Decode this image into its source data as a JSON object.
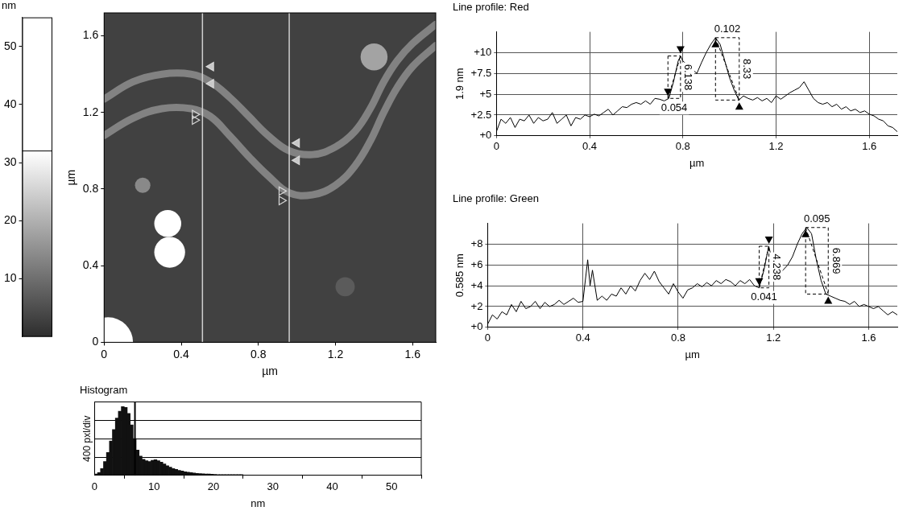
{
  "chart_data": [
    {
      "type": "colorbar",
      "title": "nm",
      "ylim": [
        0,
        55
      ],
      "yticks": [
        10,
        20,
        30,
        40,
        50
      ],
      "saturation": 32
    },
    {
      "type": "image",
      "x_label": "µm",
      "y_label": "µm",
      "xlim": [
        0,
        1.72
      ],
      "ylim": [
        0,
        1.72
      ],
      "xticks": [
        0,
        0.4,
        0.8,
        1.2,
        1.6
      ],
      "yticks": [
        0,
        0.4,
        0.8,
        1.2,
        1.6
      ],
      "background_height": 3,
      "strands": [
        {
          "height": 13,
          "points": [
            [
              0,
              1.27
            ],
            [
              0.15,
              1.36
            ],
            [
              0.3,
              1.4
            ],
            [
              0.45,
              1.4
            ],
            [
              0.55,
              1.36
            ],
            [
              0.65,
              1.28
            ],
            [
              0.75,
              1.18
            ],
            [
              0.85,
              1.08
            ],
            [
              0.96,
              1.0
            ],
            [
              1.08,
              0.98
            ],
            [
              1.2,
              1.02
            ],
            [
              1.3,
              1.1
            ],
            [
              1.38,
              1.22
            ],
            [
              1.45,
              1.36
            ],
            [
              1.52,
              1.47
            ],
            [
              1.6,
              1.56
            ],
            [
              1.72,
              1.66
            ]
          ]
        },
        {
          "height": 13,
          "points": [
            [
              0,
              1.08
            ],
            [
              0.15,
              1.17
            ],
            [
              0.3,
              1.22
            ],
            [
              0.45,
              1.22
            ],
            [
              0.55,
              1.18
            ],
            [
              0.65,
              1.08
            ],
            [
              0.75,
              0.97
            ],
            [
              0.85,
              0.87
            ],
            [
              0.96,
              0.78
            ],
            [
              1.08,
              0.77
            ],
            [
              1.2,
              0.82
            ],
            [
              1.3,
              0.92
            ],
            [
              1.38,
              1.05
            ],
            [
              1.45,
              1.2
            ],
            [
              1.52,
              1.33
            ],
            [
              1.6,
              1.44
            ],
            [
              1.72,
              1.55
            ]
          ]
        }
      ],
      "blobs": [
        {
          "x": 0.33,
          "y": 0.62,
          "radius": 0.07,
          "height": 35
        },
        {
          "x": 0.34,
          "y": 0.47,
          "radius": 0.08,
          "height": 35
        },
        {
          "x": 0.2,
          "y": 0.82,
          "radius": 0.04,
          "height": 14
        },
        {
          "x": 1.4,
          "y": 1.49,
          "radius": 0.07,
          "height": 18
        },
        {
          "x": 0.02,
          "y": 0.0,
          "radius": 0.13,
          "height": 40
        },
        {
          "x": 1.25,
          "y": 0.29,
          "radius": 0.05,
          "height": 7
        }
      ],
      "profile_lines": [
        0.51,
        0.96
      ],
      "cursors": [
        {
          "x": 0.555,
          "y": 1.44,
          "marker": "filled_triangle_left"
        },
        {
          "x": 0.555,
          "y": 1.35,
          "marker": "filled_triangle_left"
        },
        {
          "x": 0.47,
          "y": 1.19,
          "marker": "open_triangle_right"
        },
        {
          "x": 0.47,
          "y": 1.16,
          "marker": "open_triangle_right"
        },
        {
          "x": 1.0,
          "y": 1.04,
          "marker": "filled_triangle_left"
        },
        {
          "x": 1.0,
          "y": 0.95,
          "marker": "filled_triangle_left"
        },
        {
          "x": 0.92,
          "y": 0.79,
          "marker": "open_triangle_right"
        },
        {
          "x": 0.92,
          "y": 0.74,
          "marker": "open_triangle_right"
        }
      ]
    },
    {
      "type": "histogram",
      "title": "Histogram",
      "x_label": "nm",
      "y_label": "400 pxl/div",
      "xlim": [
        0,
        55
      ],
      "xticks": [
        0,
        10,
        20,
        30,
        40,
        50
      ],
      "ylim": [
        0,
        1600
      ],
      "yticks": [
        0,
        400,
        800,
        1200,
        1600
      ],
      "tick_labels": "x",
      "grid": true,
      "color": "#111111",
      "cursor": 6.8,
      "bins": [
        0,
        0.5,
        1,
        1.5,
        2,
        2.5,
        3,
        3.5,
        4,
        4.5,
        5,
        5.5,
        6,
        6.5,
        7,
        7.5,
        8,
        8.5,
        9,
        9.5,
        10,
        10.5,
        11,
        11.5,
        12,
        12.5,
        13,
        13.5,
        14,
        14.5,
        15,
        15.5,
        16,
        16.5,
        17,
        17.5,
        18,
        18.5,
        19,
        19.5,
        20,
        20.5,
        21,
        21.5,
        22,
        22.5,
        23,
        23.5,
        24,
        24.5,
        25
      ],
      "counts": [
        30,
        60,
        150,
        300,
        500,
        750,
        1000,
        1250,
        1400,
        1500,
        1480,
        1350,
        1100,
        800,
        550,
        420,
        350,
        320,
        300,
        330,
        340,
        320,
        290,
        250,
        210,
        180,
        150,
        130,
        110,
        95,
        80,
        70,
        60,
        50,
        45,
        40,
        35,
        30,
        28,
        25,
        20,
        15,
        15,
        15,
        15,
        15,
        15,
        15,
        15,
        15
      ]
    },
    {
      "type": "line",
      "title": "Line profile: Red",
      "x_label": "µm",
      "y_label": "1.9 nm",
      "xlim": [
        0,
        1.72
      ],
      "xticks": [
        0,
        0.4,
        0.8,
        1.2,
        1.6
      ],
      "ylim": [
        0,
        12.5
      ],
      "yticks": [
        {
          "value": 0,
          "label": "+0"
        },
        {
          "value": 2.5,
          "label": "+2.5"
        },
        {
          "value": 5,
          "label": "+5"
        },
        {
          "value": 7.5,
          "label": "+7.5"
        },
        {
          "value": 10,
          "label": "+10"
        }
      ],
      "grid": true,
      "color": "#000000",
      "x": [
        0,
        0.02,
        0.04,
        0.06,
        0.08,
        0.1,
        0.12,
        0.14,
        0.16,
        0.18,
        0.2,
        0.22,
        0.24,
        0.26,
        0.28,
        0.3,
        0.32,
        0.34,
        0.36,
        0.38,
        0.4,
        0.42,
        0.44,
        0.46,
        0.48,
        0.5,
        0.52,
        0.54,
        0.56,
        0.58,
        0.6,
        0.62,
        0.64,
        0.66,
        0.68,
        0.7,
        0.72,
        0.74,
        0.76,
        0.78,
        0.79,
        0.8,
        0.82,
        0.84,
        0.86,
        0.88,
        0.9,
        0.92,
        0.94,
        0.96,
        0.98,
        1.0,
        1.02,
        1.04,
        1.06,
        1.08,
        1.1,
        1.12,
        1.14,
        1.16,
        1.18,
        1.2,
        1.22,
        1.24,
        1.26,
        1.28,
        1.3,
        1.32,
        1.34,
        1.36,
        1.38,
        1.4,
        1.42,
        1.44,
        1.46,
        1.48,
        1.5,
        1.52,
        1.54,
        1.56,
        1.58,
        1.6,
        1.62,
        1.64,
        1.66,
        1.68,
        1.7,
        1.72
      ],
      "values": [
        0.5,
        2,
        1.5,
        2.2,
        1.0,
        2,
        1.8,
        2.5,
        1.5,
        2.2,
        1.8,
        2.0,
        2.8,
        1.5,
        2.0,
        2.5,
        1.2,
        2.2,
        2.0,
        2.5,
        2.3,
        2.6,
        2.4,
        2.8,
        3.2,
        2.5,
        3.0,
        3.5,
        3.4,
        3.8,
        4.0,
        3.8,
        4.2,
        3.8,
        4.5,
        4.4,
        4.2,
        4.5,
        6.5,
        9.0,
        9.6,
        9.0,
        8.5,
        8.0,
        7.5,
        8.8,
        10.0,
        11.0,
        11.8,
        11.0,
        9.0,
        7.0,
        5.5,
        4.3,
        4.8,
        4.5,
        4.3,
        4.6,
        4.2,
        4.5,
        4.0,
        4.8,
        4.4,
        4.8,
        5.2,
        5.5,
        5.8,
        6.5,
        5.5,
        4.5,
        4.0,
        3.8,
        4.0,
        3.5,
        3.8,
        3.2,
        3.5,
        3.0,
        3.2,
        2.8,
        3.0,
        2.6,
        2.4,
        2.0,
        1.8,
        1.2,
        1.0,
        0.5
      ],
      "measurements": [
        {
          "x": [
            0.736,
            0.79
          ],
          "y": [
            4.5,
            9.6
          ],
          "dx": "0.054",
          "dy": "6.138"
        },
        {
          "x": [
            0.94,
            1.042
          ],
          "y": [
            11.8,
            4.3
          ],
          "dx": "0.102",
          "dy": "8.33"
        }
      ]
    },
    {
      "type": "line",
      "title": "Line profile: Green",
      "x_label": "µm",
      "y_label": "0.585 nm",
      "xlim": [
        0,
        1.72
      ],
      "xticks": [
        0,
        0.4,
        0.8,
        1.2,
        1.6
      ],
      "ylim": [
        0,
        10
      ],
      "yticks": [
        {
          "value": 0,
          "label": "+0"
        },
        {
          "value": 2,
          "label": "+2"
        },
        {
          "value": 4,
          "label": "+4"
        },
        {
          "value": 6,
          "label": "+6"
        },
        {
          "value": 8,
          "label": "+8"
        }
      ],
      "grid": true,
      "color": "#000000",
      "x": [
        0,
        0.02,
        0.04,
        0.06,
        0.08,
        0.1,
        0.12,
        0.14,
        0.16,
        0.18,
        0.2,
        0.22,
        0.24,
        0.26,
        0.28,
        0.3,
        0.32,
        0.34,
        0.36,
        0.38,
        0.4,
        0.42,
        0.43,
        0.44,
        0.46,
        0.48,
        0.5,
        0.52,
        0.54,
        0.56,
        0.58,
        0.6,
        0.62,
        0.64,
        0.66,
        0.68,
        0.7,
        0.72,
        0.74,
        0.76,
        0.78,
        0.8,
        0.82,
        0.84,
        0.86,
        0.88,
        0.9,
        0.92,
        0.94,
        0.96,
        0.98,
        1.0,
        1.02,
        1.04,
        1.06,
        1.08,
        1.1,
        1.12,
        1.14,
        1.16,
        1.18,
        1.2,
        1.22,
        1.24,
        1.26,
        1.28,
        1.3,
        1.32,
        1.34,
        1.36,
        1.38,
        1.4,
        1.42,
        1.44,
        1.46,
        1.48,
        1.5,
        1.52,
        1.54,
        1.56,
        1.58,
        1.6,
        1.62,
        1.64,
        1.66,
        1.68,
        1.7,
        1.72
      ],
      "values": [
        0.3,
        1.2,
        0.8,
        1.5,
        1.2,
        2.2,
        1.5,
        2.5,
        1.8,
        2.0,
        2.5,
        1.8,
        2.4,
        2.0,
        2.2,
        2.6,
        2.2,
        2.5,
        2.8,
        2.4,
        2.5,
        6.5,
        4.0,
        5.5,
        2.6,
        3.0,
        2.6,
        3.2,
        3.0,
        3.8,
        3.2,
        4.0,
        3.5,
        4.5,
        5.2,
        4.6,
        5.4,
        4.4,
        3.8,
        3.2,
        4.2,
        3.4,
        2.8,
        3.6,
        3.8,
        4.2,
        3.9,
        4.3,
        4.0,
        4.5,
        4.2,
        4.6,
        4.4,
        4.0,
        4.5,
        4.2,
        4.6,
        4.0,
        3.8,
        5.5,
        7.8,
        6.0,
        5.0,
        5.5,
        6.0,
        6.8,
        8.0,
        9.0,
        9.6,
        9.0,
        6.5,
        4.5,
        3.2,
        3.0,
        2.8,
        2.6,
        2.5,
        2.2,
        2.5,
        2.0,
        2.2,
        2.0,
        1.8,
        2.0,
        1.6,
        1.2,
        1.5,
        1.2
      ],
      "measurements": [
        {
          "x": [
            1.14,
            1.181
          ],
          "y": [
            3.8,
            7.8
          ],
          "dx": "0.041",
          "dy": "4.238"
        },
        {
          "x": [
            1.335,
            1.43
          ],
          "y": [
            9.6,
            3.2
          ],
          "dx": "0.095",
          "dy": "6.869"
        }
      ]
    }
  ]
}
